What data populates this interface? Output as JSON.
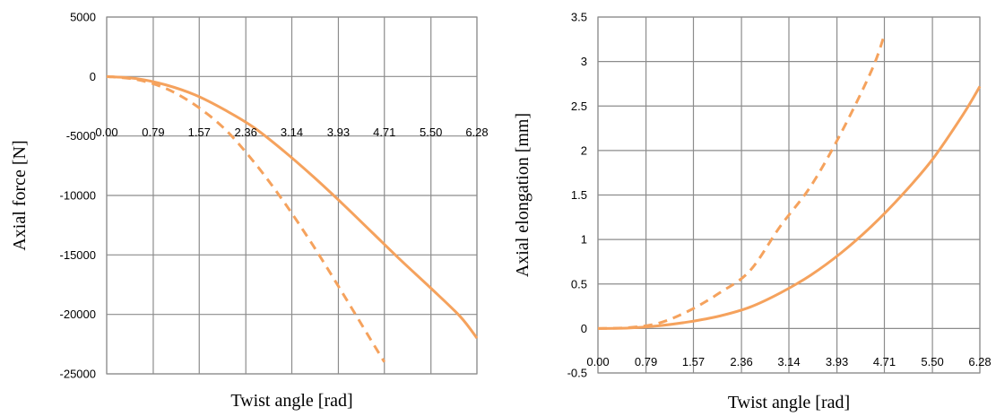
{
  "chart_data": [
    {
      "type": "line",
      "xlabel": "Twist angle [rad]",
      "ylabel": "Axial force [N]",
      "x_ticks": [
        "0.00",
        "0.79",
        "1.57",
        "2.36",
        "3.14",
        "3.93",
        "4.71",
        "5.50",
        "6.28"
      ],
      "y_ticks": [
        "5000",
        "0",
        "-5000",
        "-10000",
        "-15000",
        "-20000",
        "-25000"
      ],
      "xlim": [
        0,
        6.28
      ],
      "ylim": [
        -25000,
        5000
      ],
      "grid": true,
      "color": "#F5A25D",
      "series": [
        {
          "style": "solid",
          "x": [
            0,
            0.5,
            1.0,
            1.5,
            2.0,
            2.5,
            3.0,
            3.5,
            4.0,
            4.5,
            5.0,
            5.5,
            6.0,
            6.28
          ],
          "y": [
            0,
            -170,
            -700,
            -1550,
            -2800,
            -4300,
            -6250,
            -8400,
            -10700,
            -13100,
            -15500,
            -17800,
            -20200,
            -22000
          ]
        },
        {
          "style": "dashed",
          "x": [
            0,
            0.5,
            1.0,
            1.5,
            2.0,
            2.5,
            3.0,
            3.5,
            4.0,
            4.5,
            4.71
          ],
          "y": [
            0,
            -250,
            -1000,
            -2400,
            -4400,
            -7200,
            -10500,
            -14200,
            -18200,
            -22300,
            -24000
          ]
        }
      ]
    },
    {
      "type": "line",
      "xlabel": "Twist angle [rad]",
      "ylabel": "Axial elongation [mm]",
      "x_ticks": [
        "0.00",
        "0.79",
        "1.57",
        "2.36",
        "3.14",
        "3.93",
        "4.71",
        "5.50",
        "6.28"
      ],
      "y_ticks": [
        "3.5",
        "3",
        "2.5",
        "2",
        "1.5",
        "1",
        "0.5",
        "0",
        "-0.5"
      ],
      "xlim": [
        0,
        6.28
      ],
      "ylim": [
        -0.5,
        3.5
      ],
      "grid": true,
      "color": "#F5A25D",
      "series": [
        {
          "style": "solid",
          "x": [
            0,
            0.5,
            1.0,
            1.5,
            2.0,
            2.5,
            3.0,
            3.5,
            4.0,
            4.5,
            5.0,
            5.5,
            6.0,
            6.28
          ],
          "y": [
            0,
            0.005,
            0.03,
            0.075,
            0.14,
            0.24,
            0.4,
            0.6,
            0.85,
            1.15,
            1.5,
            1.9,
            2.4,
            2.72
          ]
        },
        {
          "style": "dashed",
          "x": [
            0,
            0.5,
            1.0,
            1.5,
            2.0,
            2.5,
            3.0,
            3.5,
            4.0,
            4.5,
            4.71
          ],
          "y": [
            0,
            0.01,
            0.06,
            0.2,
            0.4,
            0.65,
            1.15,
            1.6,
            2.2,
            2.9,
            3.3
          ]
        }
      ]
    }
  ]
}
